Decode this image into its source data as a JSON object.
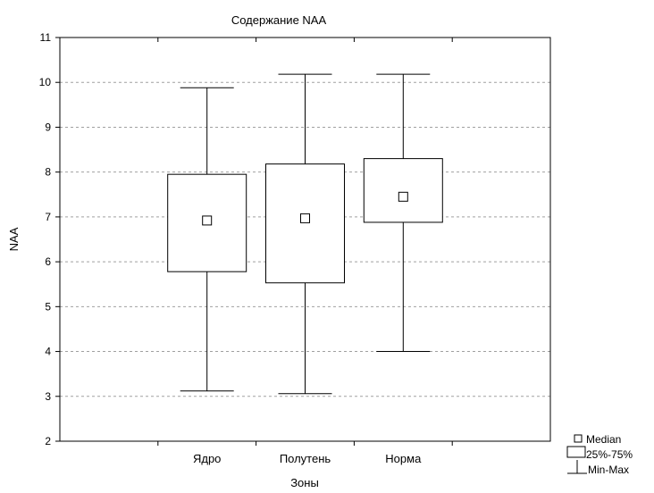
{
  "chart_data": {
    "type": "box",
    "title": "Содержание NAA",
    "xlabel": "Зоны",
    "ylabel": "NAA",
    "ylim": [
      2,
      11
    ],
    "yticks": [
      2,
      3,
      4,
      5,
      6,
      7,
      8,
      9,
      10,
      11
    ],
    "grid": true,
    "legend_position": "bottom-right",
    "categories": [
      "Ядро",
      "Полутень",
      "Норма"
    ],
    "series": [
      {
        "category": "Ядро",
        "min": 3.12,
        "q1": 5.78,
        "median": 6.92,
        "q3": 7.95,
        "max": 9.88
      },
      {
        "category": "Полутень",
        "min": 3.06,
        "q1": 5.53,
        "median": 6.97,
        "q3": 8.18,
        "max": 10.18
      },
      {
        "category": "Норма",
        "min": 4.0,
        "q1": 6.88,
        "median": 7.45,
        "q3": 8.3,
        "max": 10.18
      }
    ],
    "legend": {
      "median": "Median",
      "box": "25%-75%",
      "whisker": "Min-Max"
    }
  }
}
